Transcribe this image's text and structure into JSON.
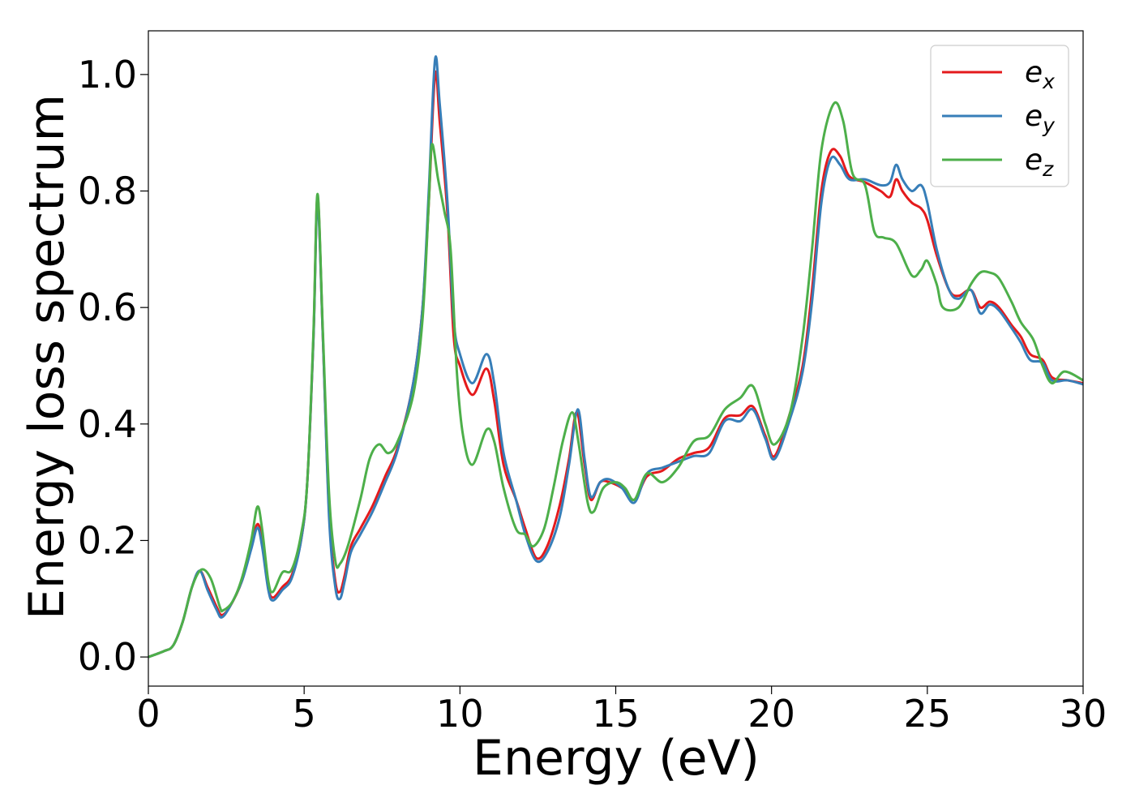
{
  "chart_data": {
    "type": "line",
    "xlabel": "Energy (eV)",
    "ylabel": "Energy loss spectrum",
    "xlim": [
      0,
      30
    ],
    "ylim": [
      -0.05,
      1.075
    ],
    "xticks": [
      0,
      5,
      10,
      15,
      20,
      25,
      30
    ],
    "yticks": [
      0.0,
      0.2,
      0.4,
      0.6,
      0.8,
      1.0
    ],
    "xtick_labels": [
      "0",
      "5",
      "10",
      "15",
      "20",
      "25",
      "30"
    ],
    "ytick_labels": [
      "0.0",
      "0.2",
      "0.4",
      "0.6",
      "0.8",
      "1.0"
    ],
    "grid": false,
    "legend_position": "upper-right",
    "series": [
      {
        "name": "e_x",
        "label_base": "e",
        "label_sub": "x",
        "color": "#e41a1c",
        "points": [
          [
            0,
            0
          ],
          [
            0.5,
            0.01
          ],
          [
            0.8,
            0.02
          ],
          [
            1.1,
            0.06
          ],
          [
            1.4,
            0.12
          ],
          [
            1.65,
            0.148
          ],
          [
            1.9,
            0.12
          ],
          [
            2.2,
            0.085
          ],
          [
            2.35,
            0.072
          ],
          [
            2.6,
            0.085
          ],
          [
            3.0,
            0.13
          ],
          [
            3.3,
            0.19
          ],
          [
            3.5,
            0.228
          ],
          [
            3.65,
            0.2
          ],
          [
            3.85,
            0.12
          ],
          [
            4.0,
            0.102
          ],
          [
            4.3,
            0.12
          ],
          [
            4.6,
            0.14
          ],
          [
            4.9,
            0.2
          ],
          [
            5.1,
            0.3
          ],
          [
            5.3,
            0.55
          ],
          [
            5.43,
            0.79
          ],
          [
            5.6,
            0.55
          ],
          [
            5.8,
            0.25
          ],
          [
            6.0,
            0.13
          ],
          [
            6.15,
            0.112
          ],
          [
            6.3,
            0.14
          ],
          [
            6.5,
            0.19
          ],
          [
            6.8,
            0.22
          ],
          [
            7.2,
            0.26
          ],
          [
            7.6,
            0.31
          ],
          [
            8.0,
            0.36
          ],
          [
            8.5,
            0.47
          ],
          [
            8.8,
            0.6
          ],
          [
            9.0,
            0.78
          ],
          [
            9.2,
            1.0
          ],
          [
            9.35,
            0.92
          ],
          [
            9.6,
            0.76
          ],
          [
            9.8,
            0.55
          ],
          [
            10.0,
            0.5
          ],
          [
            10.4,
            0.45
          ],
          [
            10.85,
            0.495
          ],
          [
            11.1,
            0.44
          ],
          [
            11.4,
            0.33
          ],
          [
            11.8,
            0.27
          ],
          [
            12.1,
            0.22
          ],
          [
            12.45,
            0.17
          ],
          [
            12.8,
            0.19
          ],
          [
            13.2,
            0.26
          ],
          [
            13.5,
            0.34
          ],
          [
            13.75,
            0.42
          ],
          [
            14.0,
            0.33
          ],
          [
            14.2,
            0.27
          ],
          [
            14.5,
            0.3
          ],
          [
            14.8,
            0.3
          ],
          [
            15.2,
            0.29
          ],
          [
            15.6,
            0.27
          ],
          [
            16.0,
            0.31
          ],
          [
            16.5,
            0.32
          ],
          [
            17.0,
            0.34
          ],
          [
            17.5,
            0.35
          ],
          [
            18.0,
            0.36
          ],
          [
            18.5,
            0.41
          ],
          [
            19.0,
            0.415
          ],
          [
            19.4,
            0.43
          ],
          [
            19.8,
            0.38
          ],
          [
            20.1,
            0.345
          ],
          [
            20.6,
            0.42
          ],
          [
            21.0,
            0.5
          ],
          [
            21.3,
            0.63
          ],
          [
            21.6,
            0.8
          ],
          [
            21.9,
            0.868
          ],
          [
            22.2,
            0.86
          ],
          [
            22.5,
            0.825
          ],
          [
            23.0,
            0.815
          ],
          [
            23.5,
            0.8
          ],
          [
            23.8,
            0.79
          ],
          [
            24.0,
            0.82
          ],
          [
            24.2,
            0.8
          ],
          [
            24.5,
            0.78
          ],
          [
            24.8,
            0.77
          ],
          [
            25.0,
            0.75
          ],
          [
            25.3,
            0.69
          ],
          [
            25.7,
            0.63
          ],
          [
            26.0,
            0.62
          ],
          [
            26.4,
            0.63
          ],
          [
            26.7,
            0.6
          ],
          [
            27.0,
            0.61
          ],
          [
            27.3,
            0.6
          ],
          [
            27.7,
            0.57
          ],
          [
            28.0,
            0.55
          ],
          [
            28.3,
            0.52
          ],
          [
            28.7,
            0.51
          ],
          [
            29.0,
            0.48
          ],
          [
            29.5,
            0.475
          ],
          [
            30.0,
            0.47
          ]
        ]
      },
      {
        "name": "e_y",
        "label_base": "e",
        "label_sub": "y",
        "color": "#377eb8",
        "points": [
          [
            0,
            0
          ],
          [
            0.5,
            0.01
          ],
          [
            0.8,
            0.02
          ],
          [
            1.1,
            0.06
          ],
          [
            1.4,
            0.12
          ],
          [
            1.65,
            0.148
          ],
          [
            1.9,
            0.115
          ],
          [
            2.2,
            0.08
          ],
          [
            2.35,
            0.068
          ],
          [
            2.6,
            0.085
          ],
          [
            3.0,
            0.13
          ],
          [
            3.3,
            0.185
          ],
          [
            3.5,
            0.222
          ],
          [
            3.65,
            0.19
          ],
          [
            3.85,
            0.115
          ],
          [
            4.0,
            0.097
          ],
          [
            4.3,
            0.115
          ],
          [
            4.6,
            0.135
          ],
          [
            4.9,
            0.2
          ],
          [
            5.1,
            0.3
          ],
          [
            5.3,
            0.55
          ],
          [
            5.43,
            0.78
          ],
          [
            5.6,
            0.55
          ],
          [
            5.8,
            0.24
          ],
          [
            6.0,
            0.12
          ],
          [
            6.15,
            0.1
          ],
          [
            6.3,
            0.13
          ],
          [
            6.5,
            0.18
          ],
          [
            6.8,
            0.21
          ],
          [
            7.2,
            0.25
          ],
          [
            7.6,
            0.3
          ],
          [
            8.0,
            0.355
          ],
          [
            8.5,
            0.47
          ],
          [
            8.8,
            0.6
          ],
          [
            9.0,
            0.8
          ],
          [
            9.2,
            1.025
          ],
          [
            9.35,
            0.95
          ],
          [
            9.6,
            0.78
          ],
          [
            9.8,
            0.58
          ],
          [
            10.0,
            0.52
          ],
          [
            10.4,
            0.47
          ],
          [
            10.85,
            0.52
          ],
          [
            11.1,
            0.47
          ],
          [
            11.4,
            0.35
          ],
          [
            11.8,
            0.27
          ],
          [
            12.1,
            0.21
          ],
          [
            12.45,
            0.165
          ],
          [
            12.8,
            0.18
          ],
          [
            13.2,
            0.24
          ],
          [
            13.5,
            0.33
          ],
          [
            13.78,
            0.425
          ],
          [
            14.0,
            0.34
          ],
          [
            14.2,
            0.275
          ],
          [
            14.5,
            0.3
          ],
          [
            14.8,
            0.305
          ],
          [
            15.2,
            0.29
          ],
          [
            15.6,
            0.265
          ],
          [
            16.0,
            0.315
          ],
          [
            16.5,
            0.325
          ],
          [
            17.0,
            0.335
          ],
          [
            17.5,
            0.345
          ],
          [
            18.0,
            0.35
          ],
          [
            18.5,
            0.405
          ],
          [
            19.0,
            0.405
          ],
          [
            19.4,
            0.425
          ],
          [
            19.8,
            0.375
          ],
          [
            20.1,
            0.34
          ],
          [
            20.6,
            0.41
          ],
          [
            21.0,
            0.49
          ],
          [
            21.3,
            0.61
          ],
          [
            21.6,
            0.78
          ],
          [
            21.9,
            0.855
          ],
          [
            22.2,
            0.845
          ],
          [
            22.5,
            0.82
          ],
          [
            23.0,
            0.82
          ],
          [
            23.5,
            0.81
          ],
          [
            23.8,
            0.815
          ],
          [
            24.0,
            0.845
          ],
          [
            24.2,
            0.82
          ],
          [
            24.5,
            0.8
          ],
          [
            24.8,
            0.81
          ],
          [
            25.0,
            0.78
          ],
          [
            25.3,
            0.7
          ],
          [
            25.7,
            0.63
          ],
          [
            26.0,
            0.615
          ],
          [
            26.4,
            0.63
          ],
          [
            26.7,
            0.59
          ],
          [
            27.0,
            0.605
          ],
          [
            27.3,
            0.595
          ],
          [
            27.7,
            0.565
          ],
          [
            28.0,
            0.54
          ],
          [
            28.3,
            0.51
          ],
          [
            28.7,
            0.505
          ],
          [
            29.0,
            0.475
          ],
          [
            29.5,
            0.475
          ],
          [
            30.0,
            0.468
          ]
        ]
      },
      {
        "name": "e_z",
        "label_base": "e",
        "label_sub": "z",
        "color": "#4daf4a",
        "points": [
          [
            0,
            0
          ],
          [
            0.5,
            0.01
          ],
          [
            0.8,
            0.02
          ],
          [
            1.1,
            0.06
          ],
          [
            1.4,
            0.12
          ],
          [
            1.7,
            0.15
          ],
          [
            2.0,
            0.135
          ],
          [
            2.3,
            0.085
          ],
          [
            2.4,
            0.08
          ],
          [
            2.7,
            0.095
          ],
          [
            3.0,
            0.135
          ],
          [
            3.3,
            0.2
          ],
          [
            3.5,
            0.258
          ],
          [
            3.65,
            0.22
          ],
          [
            3.85,
            0.13
          ],
          [
            4.0,
            0.112
          ],
          [
            4.3,
            0.145
          ],
          [
            4.6,
            0.15
          ],
          [
            4.9,
            0.21
          ],
          [
            5.1,
            0.3
          ],
          [
            5.3,
            0.56
          ],
          [
            5.43,
            0.795
          ],
          [
            5.6,
            0.56
          ],
          [
            5.8,
            0.28
          ],
          [
            6.0,
            0.165
          ],
          [
            6.15,
            0.16
          ],
          [
            6.4,
            0.19
          ],
          [
            6.8,
            0.27
          ],
          [
            7.1,
            0.34
          ],
          [
            7.4,
            0.365
          ],
          [
            7.7,
            0.35
          ],
          [
            8.0,
            0.37
          ],
          [
            8.5,
            0.45
          ],
          [
            8.8,
            0.58
          ],
          [
            9.0,
            0.78
          ],
          [
            9.1,
            0.88
          ],
          [
            9.3,
            0.82
          ],
          [
            9.5,
            0.765
          ],
          [
            9.7,
            0.7
          ],
          [
            9.9,
            0.49
          ],
          [
            10.1,
            0.38
          ],
          [
            10.4,
            0.33
          ],
          [
            10.85,
            0.39
          ],
          [
            11.1,
            0.37
          ],
          [
            11.4,
            0.29
          ],
          [
            11.8,
            0.22
          ],
          [
            12.1,
            0.21
          ],
          [
            12.35,
            0.19
          ],
          [
            12.7,
            0.22
          ],
          [
            13.0,
            0.29
          ],
          [
            13.3,
            0.37
          ],
          [
            13.6,
            0.42
          ],
          [
            13.8,
            0.37
          ],
          [
            14.1,
            0.265
          ],
          [
            14.3,
            0.25
          ],
          [
            14.6,
            0.29
          ],
          [
            15.0,
            0.3
          ],
          [
            15.3,
            0.29
          ],
          [
            15.6,
            0.27
          ],
          [
            16.0,
            0.315
          ],
          [
            16.5,
            0.3
          ],
          [
            17.0,
            0.325
          ],
          [
            17.5,
            0.37
          ],
          [
            18.0,
            0.38
          ],
          [
            18.5,
            0.425
          ],
          [
            19.0,
            0.445
          ],
          [
            19.4,
            0.465
          ],
          [
            19.8,
            0.4
          ],
          [
            20.1,
            0.365
          ],
          [
            20.6,
            0.42
          ],
          [
            21.0,
            0.55
          ],
          [
            21.3,
            0.7
          ],
          [
            21.6,
            0.87
          ],
          [
            22.0,
            0.95
          ],
          [
            22.3,
            0.92
          ],
          [
            22.6,
            0.83
          ],
          [
            23.0,
            0.81
          ],
          [
            23.3,
            0.73
          ],
          [
            23.6,
            0.72
          ],
          [
            24.0,
            0.71
          ],
          [
            24.5,
            0.655
          ],
          [
            24.8,
            0.665
          ],
          [
            25.0,
            0.68
          ],
          [
            25.3,
            0.64
          ],
          [
            25.5,
            0.6
          ],
          [
            26.0,
            0.6
          ],
          [
            26.4,
            0.64
          ],
          [
            26.7,
            0.66
          ],
          [
            27.0,
            0.66
          ],
          [
            27.3,
            0.65
          ],
          [
            27.7,
            0.61
          ],
          [
            28.0,
            0.575
          ],
          [
            28.4,
            0.545
          ],
          [
            28.7,
            0.5
          ],
          [
            29.0,
            0.47
          ],
          [
            29.4,
            0.49
          ],
          [
            30.0,
            0.475
          ]
        ]
      }
    ]
  }
}
